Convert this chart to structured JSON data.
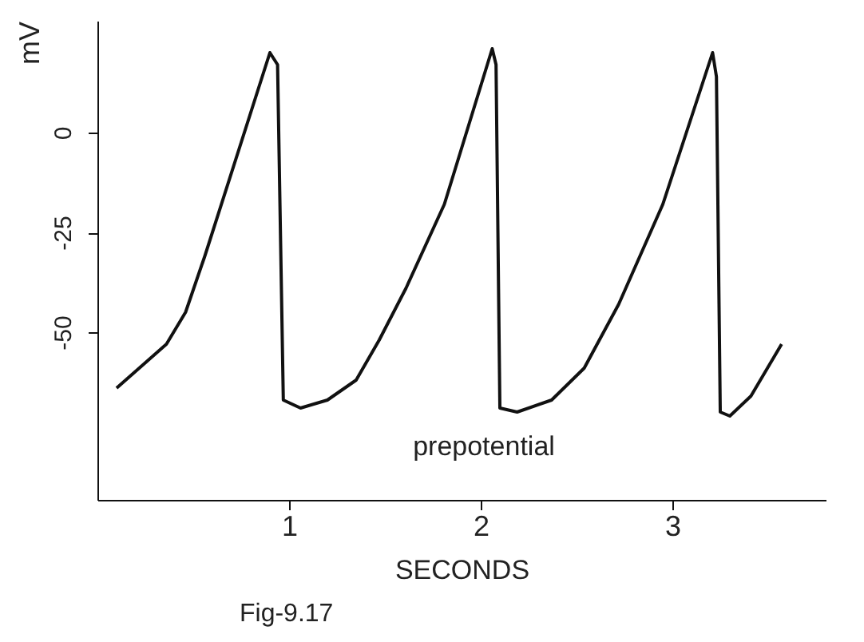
{
  "chart_data": {
    "type": "line",
    "xlabel": "SECONDS",
    "ylabel": "mV",
    "x": [
      0.1,
      0.36,
      0.46,
      0.56,
      0.9,
      0.94,
      0.97,
      1.06,
      1.2,
      1.35,
      1.47,
      1.61,
      1.81,
      2.06,
      2.08,
      2.1,
      2.19,
      2.37,
      2.54,
      2.72,
      2.95,
      3.21,
      3.23,
      3.25,
      3.3,
      3.41,
      3.57
    ],
    "series": [
      {
        "color": "#111111",
        "values": [
          -64,
          -53,
          -45,
          -31,
          20,
          17,
          -67,
          -69,
          -67,
          -62,
          -52,
          -39,
          -18,
          21,
          17,
          -69,
          -70,
          -67,
          -59,
          -43,
          -18,
          20,
          14,
          -70,
          -71,
          -66,
          -53
        ]
      }
    ],
    "xlim": [
      0,
      3.8
    ],
    "ylim": [
      -92,
      28
    ],
    "xticks": [
      1,
      2,
      3
    ],
    "yticks": [
      -50,
      -25,
      0
    ],
    "grid": false,
    "marker": "none",
    "line_style": "solid",
    "annotations": [
      {
        "text": "prepotential",
        "x": 1.35,
        "y": -62
      },
      "Fig-9.17"
    ]
  }
}
